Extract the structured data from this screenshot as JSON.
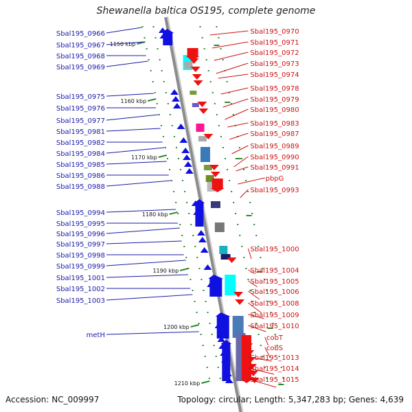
{
  "title": "Shewanella baltica OS195, complete genome",
  "footer": {
    "accession": "Accession: NC_009997",
    "summary": "Topology: circular; Length: 5,347,283 bp; Genes: 4,639"
  },
  "colors": {
    "left_label": "#1a1aa8",
    "right_label": "#cc1111",
    "forward_feature": "#1010e0",
    "reverse_feature": "#ee1111",
    "backbone": "#8c8c8c",
    "tick": "#2a8a2a"
  },
  "kbp_marks": [
    "1150 kbp",
    "1160 kbp",
    "1170 kbp",
    "1180 kbp",
    "1190 kbp",
    "1200 kbp",
    "1210 kbp"
  ],
  "left_labels": [
    "Sbal195_0966",
    "Sbal195_0967",
    "Sbal195_0968",
    "Sbal195_0969",
    "Sbal195_0975",
    "Sbal195_0976",
    "Sbal195_0977",
    "Sbal195_0981",
    "Sbal195_0982",
    "Sbal195_0984",
    "Sbal195_0985",
    "Sbal195_0986",
    "Sbal195_0988",
    "Sbal195_0994",
    "Sbal195_0995",
    "Sbal195_0996",
    "Sbal195_0997",
    "Sbal195_0998",
    "Sbal195_0999",
    "Sbal195_1001",
    "Sbal195_1002",
    "Sbal195_1003",
    "metH"
  ],
  "right_labels": [
    "Sbal195_0970",
    "Sbal195_0971",
    "Sbal195_0972",
    "Sbal195_0973",
    "Sbal195_0974",
    "Sbal195_0978",
    "Sbal195_0979",
    "Sbal195_0980",
    "Sbal195_0983",
    "Sbal195_0987",
    "Sbal195_0989",
    "Sbal195_0990",
    "Sbal195_0991",
    "pbpG",
    "Sbal195_0993",
    "Sbal195_1000",
    "Sbal195_1004",
    "Sbal195_1005",
    "Sbal195_1006",
    "Sbal195_1008",
    "Sbal195_1009",
    "Sbal195_1010",
    "cobT",
    "cobS",
    "Sbal195_1013",
    "Sbal195_1014",
    "Sbal195_1015"
  ]
}
